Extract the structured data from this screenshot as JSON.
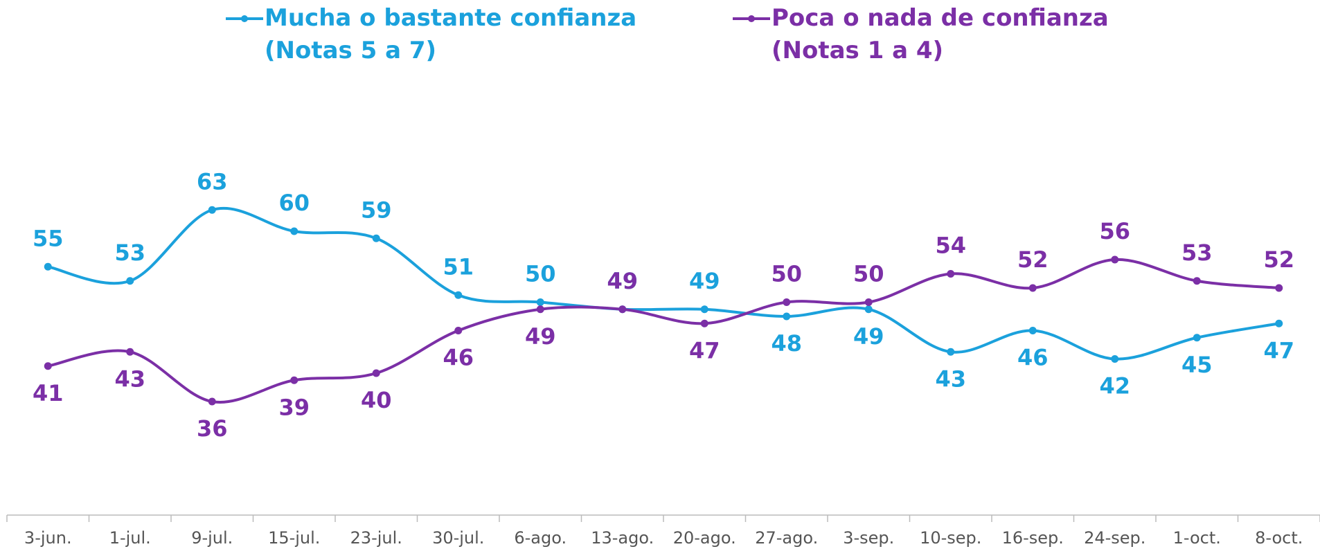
{
  "chart_data": {
    "type": "line",
    "categories": [
      "3-jun.",
      "1-jul.",
      "9-jul.",
      "15-jul.",
      "23-jul.",
      "30-jul.",
      "6-ago.",
      "13-ago.",
      "20-ago.",
      "27-ago.",
      "3-sep.",
      "10-sep.",
      "16-sep.",
      "24-sep.",
      "1-oct.",
      "8-oct."
    ],
    "series": [
      {
        "name": "Mucha o bastante confianza\n(Notas 5 a 7)",
        "color": "#1ba1dc",
        "values": [
          55,
          53,
          63,
          60,
          59,
          51,
          50,
          49,
          49,
          48,
          49,
          43,
          46,
          42,
          45,
          47
        ]
      },
      {
        "name": "Poca o nada de confianza\n(Notas 1 a 4)",
        "color": "#7b2fa6",
        "values": [
          41,
          43,
          36,
          39,
          40,
          46,
          49,
          49,
          47,
          50,
          50,
          54,
          52,
          56,
          53,
          52
        ]
      }
    ],
    "ylim": [
      20,
      80
    ],
    "grid": false
  }
}
